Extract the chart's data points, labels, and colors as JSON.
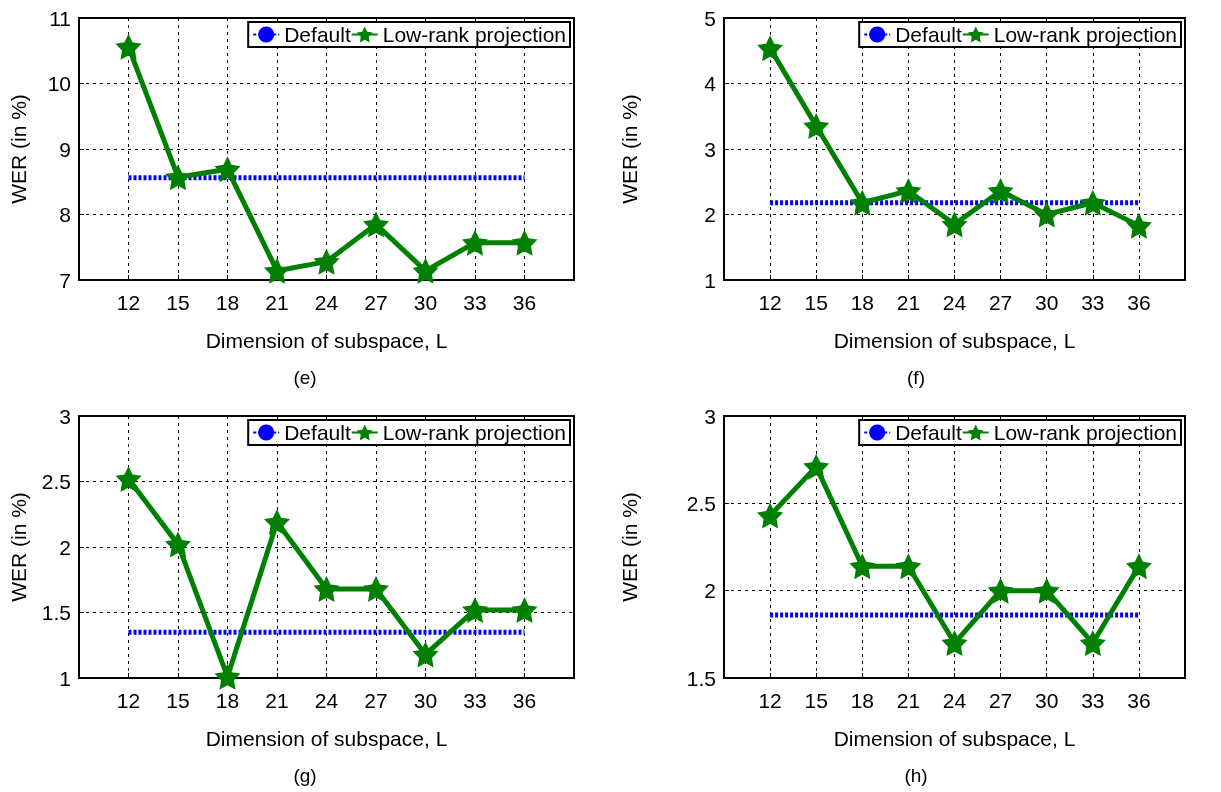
{
  "chart_data": [
    {
      "type": "line",
      "xlabel": "Dimension of subspace, L",
      "ylabel": "WER (in %)",
      "annotations": [
        "(e)"
      ],
      "x": [
        12,
        15,
        18,
        21,
        24,
        27,
        30,
        33,
        36
      ],
      "xlim": [
        9,
        39
      ],
      "xticks": [
        12,
        15,
        18,
        21,
        24,
        27,
        30,
        33,
        36
      ],
      "ylim": [
        7,
        11
      ],
      "yticks": [
        7,
        8,
        9,
        10,
        11
      ],
      "grid": true,
      "legend": "top right",
      "series": [
        {
          "name": "Default",
          "color": "#0000ff",
          "line_style": "dotted",
          "marker": "none",
          "values": [
            8.56,
            8.56,
            8.56,
            8.56,
            8.56,
            8.56,
            8.56,
            8.56,
            8.56
          ]
        },
        {
          "name": "Low-rank projection",
          "color": "#008000",
          "line_style": "solid",
          "marker": "star",
          "values": [
            10.56,
            8.57,
            8.69,
            7.14,
            7.28,
            7.85,
            7.14,
            7.57,
            7.57
          ]
        }
      ]
    },
    {
      "type": "line",
      "xlabel": "Dimension of subspace, L",
      "ylabel": "WER (in %)",
      "annotations": [
        "(f)"
      ],
      "x": [
        12,
        15,
        18,
        21,
        24,
        27,
        30,
        33,
        36
      ],
      "xlim": [
        9,
        39
      ],
      "xticks": [
        12,
        15,
        18,
        21,
        24,
        27,
        30,
        33,
        36
      ],
      "ylim": [
        1,
        5
      ],
      "yticks": [
        1,
        2,
        3,
        4,
        5
      ],
      "grid": true,
      "legend": "top right",
      "series": [
        {
          "name": "Default",
          "color": "#0000ff",
          "line_style": "dotted",
          "marker": "none",
          "values": [
            2.18,
            2.18,
            2.18,
            2.18,
            2.18,
            2.18,
            2.18,
            2.18,
            2.18
          ]
        },
        {
          "name": "Low-rank projection",
          "color": "#008000",
          "line_style": "solid",
          "marker": "star",
          "values": [
            4.54,
            3.35,
            2.18,
            2.36,
            1.85,
            2.36,
            2.0,
            2.18,
            1.83
          ]
        }
      ]
    },
    {
      "type": "line",
      "xlabel": "Dimension of subspace, L",
      "ylabel": "WER (in %)",
      "annotations": [
        "(g)"
      ],
      "x": [
        12,
        15,
        18,
        21,
        24,
        27,
        30,
        33,
        36
      ],
      "xlim": [
        9,
        39
      ],
      "xticks": [
        12,
        15,
        18,
        21,
        24,
        27,
        30,
        33,
        36
      ],
      "ylim": [
        1,
        3
      ],
      "yticks": [
        1,
        1.5,
        2,
        2.5,
        3
      ],
      "grid": true,
      "legend": "top right",
      "series": [
        {
          "name": "Default",
          "color": "#0000ff",
          "line_style": "dotted",
          "marker": "none",
          "values": [
            1.35,
            1.35,
            1.35,
            1.35,
            1.35,
            1.35,
            1.35,
            1.35,
            1.35
          ]
        },
        {
          "name": "Low-rank projection",
          "color": "#008000",
          "line_style": "solid",
          "marker": "star",
          "values": [
            2.52,
            2.02,
            1.01,
            2.19,
            1.68,
            1.68,
            1.18,
            1.52,
            1.52
          ]
        }
      ]
    },
    {
      "type": "line",
      "xlabel": "Dimension of subspace, L",
      "ylabel": "WER (in %)",
      "annotations": [
        "(h)"
      ],
      "x": [
        12,
        15,
        18,
        21,
        24,
        27,
        30,
        33,
        36
      ],
      "xlim": [
        9,
        39
      ],
      "xticks": [
        12,
        15,
        18,
        21,
        24,
        27,
        30,
        33,
        36
      ],
      "ylim": [
        1.5,
        3
      ],
      "yticks": [
        1.5,
        2,
        2.5,
        3
      ],
      "grid": true,
      "legend": "top right",
      "series": [
        {
          "name": "Default",
          "color": "#0000ff",
          "line_style": "dotted",
          "marker": "none",
          "values": [
            1.86,
            1.86,
            1.86,
            1.86,
            1.86,
            1.86,
            1.86,
            1.86,
            1.86
          ]
        },
        {
          "name": "Low-rank projection",
          "color": "#008000",
          "line_style": "solid",
          "marker": "star",
          "values": [
            2.43,
            2.71,
            2.14,
            2.14,
            1.7,
            2.0,
            2.0,
            1.7,
            2.14
          ]
        }
      ]
    }
  ]
}
